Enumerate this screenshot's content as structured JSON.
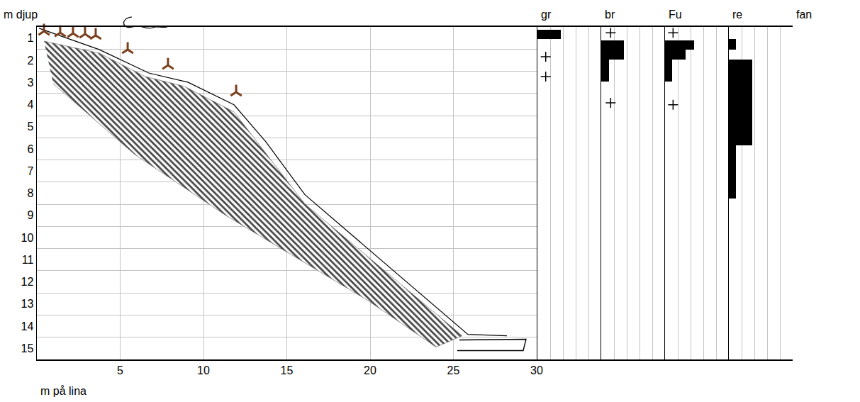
{
  "chart_data": [
    {
      "type": "profile",
      "xlabel": "m på lina",
      "ylabel": "m djup",
      "xlim": [
        0,
        30
      ],
      "xticks": [
        5,
        10,
        15,
        20,
        25,
        30
      ],
      "ylim": [
        0,
        15
      ],
      "yticks": [
        {
          "value": 0.5,
          "label": "1"
        },
        {
          "value": 1.5,
          "label": "2"
        },
        {
          "value": 2.5,
          "label": "3"
        },
        {
          "value": 3.5,
          "label": "4"
        },
        {
          "value": 4.5,
          "label": "5"
        },
        {
          "value": 5.5,
          "label": "6"
        },
        {
          "value": 6.5,
          "label": "7"
        },
        {
          "value": 7.5,
          "label": "8"
        },
        {
          "value": 8.5,
          "label": "9"
        },
        {
          "value": 9.5,
          "label": "10"
        },
        {
          "value": 10.5,
          "label": "11"
        },
        {
          "value": 11.5,
          "label": "12"
        },
        {
          "value": 12.5,
          "label": "13"
        },
        {
          "value": 13.5,
          "label": "14"
        },
        {
          "value": 14.5,
          "label": "15"
        }
      ],
      "grid": true,
      "series": [
        {
          "type": "hatched_area",
          "color": "#444444",
          "x": [
            0.43,
            3.74,
            6.51,
            8.85,
            11.83,
            16.09,
            25.53,
            23.96,
            19.91,
            11.4,
            5.87,
            0.98
          ],
          "y": [
            0.64,
            1.18,
            2.24,
            2.68,
            3.83,
            7.99,
            13.93,
            14.44,
            12.36,
            8.53,
            5.75,
            2.56
          ]
        },
        {
          "type": "line",
          "color": "#000000",
          "x": [
            0.13,
            3.74,
            6.72,
            9.06,
            11.83,
            13.74,
            16.09,
            25.87,
            28.21
          ],
          "y": [
            0.06,
            1.02,
            2.08,
            2.49,
            3.51,
            5.18,
            7.57,
            13.87,
            13.93
          ]
        },
        {
          "type": "outline_area",
          "color": "#000000",
          "x": [
            25.36,
            29.36,
            29.19,
            25.23
          ],
          "y": [
            14.12,
            14.09,
            14.6,
            14.6
          ]
        },
        {
          "type": "scatter",
          "marker": "y-up",
          "color": "#7b3f1d",
          "x": [
            0.43,
            1.4,
            2.17,
            2.89,
            3.53,
            5.45,
            7.87,
            11.96
          ],
          "y": [
            0.19,
            0.26,
            0.29,
            0.32,
            0.38,
            1.02,
            1.73,
            2.94
          ]
        }
      ]
    },
    {
      "type": "bar",
      "orientation": "horizontal",
      "title": "gr",
      "xlim": [
        0,
        5
      ],
      "xticks": [
        0,
        1,
        2,
        3,
        4,
        5
      ],
      "ylim": [
        0,
        15
      ],
      "tick_labels": false,
      "grid": true,
      "series": [
        {
          "type": "bar",
          "color": "#000000",
          "from": [
            0.13
          ],
          "to": [
            0.55
          ],
          "values": [
            1.85
          ]
        },
        {
          "type": "scatter",
          "marker": "cross",
          "color": "#000000",
          "x": [
            0.65,
            0.65
          ],
          "y": [
            1.34,
            2.24
          ]
        }
      ]
    },
    {
      "type": "bar",
      "orientation": "horizontal",
      "title": "br",
      "xlim": [
        0,
        5
      ],
      "xticks": [
        0,
        1,
        2,
        3,
        4,
        5
      ],
      "ylim": [
        0,
        15
      ],
      "tick_labels": false,
      "grid": true,
      "series": [
        {
          "type": "bar",
          "color": "#000000",
          "from": [
            0.61,
            1.47
          ],
          "to": [
            1.47,
            2.46
          ],
          "values": [
            1.8,
            0.63
          ]
        },
        {
          "type": "scatter",
          "marker": "cross",
          "color": "#000000",
          "x": [
            0.74,
            0.74
          ],
          "y": [
            0.26,
            3.42
          ]
        }
      ]
    },
    {
      "type": "bar",
      "orientation": "horizontal",
      "title": "Fu",
      "xlim": [
        0,
        5
      ],
      "xticks": [
        0,
        1,
        2,
        3,
        4,
        5
      ],
      "ylim": [
        0,
        15
      ],
      "tick_labels": false,
      "grid": true,
      "series": [
        {
          "type": "bar",
          "color": "#000000",
          "from": [
            0.61,
            1.02,
            1.47
          ],
          "to": [
            1.02,
            1.47,
            2.46
          ],
          "values": [
            2.26,
            1.63,
            0.53
          ]
        },
        {
          "type": "scatter",
          "marker": "cross",
          "color": "#000000",
          "x": [
            0.63,
            0.63
          ],
          "y": [
            0.26,
            3.51
          ]
        }
      ]
    },
    {
      "type": "bar",
      "orientation": "horizontal",
      "title": "re",
      "xlim": [
        0,
        5
      ],
      "xticks": [
        0,
        1,
        2,
        3,
        4,
        5
      ],
      "ylim": [
        0,
        15
      ],
      "tick_labels": false,
      "grid": true,
      "series": [
        {
          "type": "bar",
          "color": "#000000",
          "from": [
            0.54,
            1.47,
            5.34
          ],
          "to": [
            1.02,
            5.34,
            7.73
          ],
          "values": [
            0.57,
            1.84,
            0.57
          ]
        }
      ]
    },
    {
      "type": "bar",
      "orientation": "horizontal",
      "title": "fan",
      "xlim": [
        0,
        5
      ],
      "xticks": [
        0,
        1,
        2,
        3,
        4,
        5
      ],
      "ylim": [
        0,
        15
      ],
      "tick_labels": false,
      "grid": true,
      "series": []
    }
  ]
}
